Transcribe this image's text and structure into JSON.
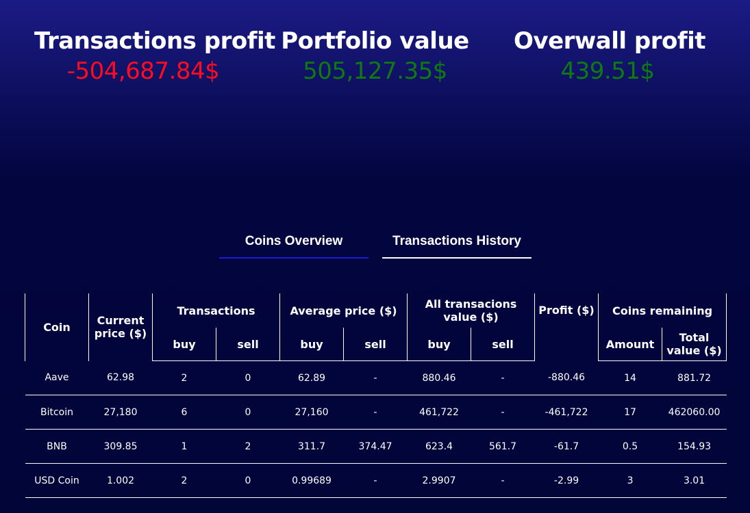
{
  "stats": {
    "transactions_profit": {
      "title": "Transactions profit",
      "value": "-504,687.84$"
    },
    "portfolio_value": {
      "title": "Portfolio value",
      "value": "505,127.35$"
    },
    "overall_profit": {
      "title": "Overwall profit",
      "value": "439.51$"
    }
  },
  "colors": {
    "negative": "#ff0c1e",
    "positive": "#0f7a10",
    "active_tab_underline": "#1b1bdc"
  },
  "tabs": {
    "coins_overview": "Coins Overview",
    "transactions_history": "Transactions History"
  },
  "table": {
    "headers": {
      "coin": "Coin",
      "current_price": "Current price ($)",
      "transactions": "Transactions",
      "average_price": "Average price ($)",
      "all_transactions_value": "All transacions value ($)",
      "profit": "Profit ($)",
      "coins_remaining": "Coins remaining",
      "buy": "buy",
      "sell": "sell",
      "amount": "Amount",
      "total_value": "Total value ($)"
    },
    "rows": [
      {
        "coin": "Aave",
        "current_price": "62.98",
        "tx_buy": "2",
        "tx_sell": "0",
        "avg_buy": "62.89",
        "avg_sell": "-",
        "all_buy": "880.46",
        "all_sell": "-",
        "profit": "-880.46",
        "amount": "14",
        "total": "881.72"
      },
      {
        "coin": "Bitcoin",
        "current_price": "27,180",
        "tx_buy": "6",
        "tx_sell": "0",
        "avg_buy": "27,160",
        "avg_sell": "-",
        "all_buy": "461,722",
        "all_sell": "-",
        "profit": "-461,722",
        "amount": "17",
        "total": "462060.00"
      },
      {
        "coin": "BNB",
        "current_price": "309.85",
        "tx_buy": "1",
        "tx_sell": "2",
        "avg_buy": "311.7",
        "avg_sell": "374.47",
        "all_buy": "623.4",
        "all_sell": "561.7",
        "profit": "-61.7",
        "amount": "0.5",
        "total": "154.93"
      },
      {
        "coin": "USD Coin",
        "current_price": "1.002",
        "tx_buy": "2",
        "tx_sell": "0",
        "avg_buy": "0.99689",
        "avg_sell": "-",
        "all_buy": "2.9907",
        "all_sell": "-",
        "profit": "-2.99",
        "amount": "3",
        "total": "3.01"
      }
    ]
  }
}
